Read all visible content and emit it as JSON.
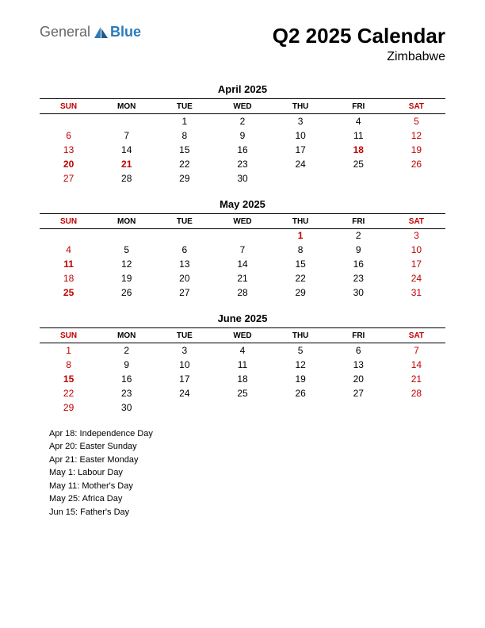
{
  "logo": {
    "text1": "General",
    "text2": "Blue",
    "color1": "#666666",
    "color2": "#2b7bba",
    "icon_color": "#2b7bba"
  },
  "title": "Q2 2025 Calendar",
  "subtitle": "Zimbabwe",
  "day_headers": [
    "SUN",
    "MON",
    "TUE",
    "WED",
    "THU",
    "FRI",
    "SAT"
  ],
  "weekend_cols": [
    0,
    6
  ],
  "holiday_color": "#c00000",
  "months": [
    {
      "title": "April 2025",
      "weeks": [
        [
          "",
          "",
          1,
          2,
          3,
          4,
          5
        ],
        [
          6,
          7,
          8,
          9,
          10,
          11,
          12
        ],
        [
          13,
          14,
          15,
          16,
          17,
          18,
          19
        ],
        [
          20,
          21,
          22,
          23,
          24,
          25,
          26
        ],
        [
          27,
          28,
          29,
          30,
          "",
          "",
          ""
        ]
      ],
      "holidays": [
        18,
        20,
        21
      ]
    },
    {
      "title": "May 2025",
      "weeks": [
        [
          "",
          "",
          "",
          "",
          1,
          2,
          3
        ],
        [
          4,
          5,
          6,
          7,
          8,
          9,
          10
        ],
        [
          11,
          12,
          13,
          14,
          15,
          16,
          17
        ],
        [
          18,
          19,
          20,
          21,
          22,
          23,
          24
        ],
        [
          25,
          26,
          27,
          28,
          29,
          30,
          31
        ]
      ],
      "holidays": [
        1,
        11,
        25
      ]
    },
    {
      "title": "June 2025",
      "weeks": [
        [
          1,
          2,
          3,
          4,
          5,
          6,
          7
        ],
        [
          8,
          9,
          10,
          11,
          12,
          13,
          14
        ],
        [
          15,
          16,
          17,
          18,
          19,
          20,
          21
        ],
        [
          22,
          23,
          24,
          25,
          26,
          27,
          28
        ],
        [
          29,
          30,
          "",
          "",
          "",
          "",
          ""
        ]
      ],
      "holidays": [
        15
      ]
    }
  ],
  "holiday_list": [
    "Apr 18: Independence Day",
    "Apr 20: Easter Sunday",
    "Apr 21: Easter Monday",
    "May 1: Labour Day",
    "May 11: Mother's Day",
    "May 25: Africa Day",
    "Jun 15: Father's Day"
  ]
}
